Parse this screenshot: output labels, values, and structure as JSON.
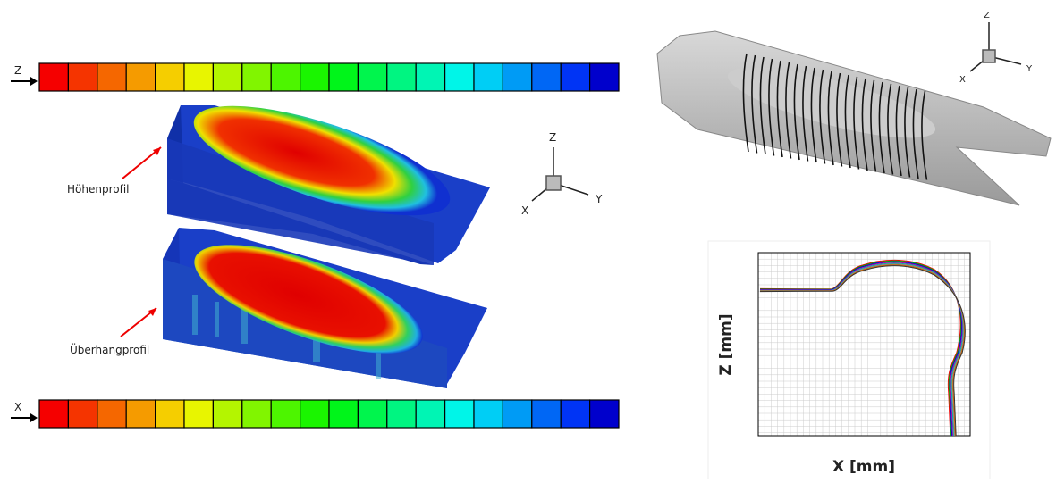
{
  "colorbars": [
    {
      "axis_label": "Z"
    },
    {
      "axis_label": "X"
    }
  ],
  "annotations": [
    "Höhenprofil",
    "Überhangprofil"
  ],
  "triads": [
    {
      "z": "Z",
      "x": "X",
      "y": "Y"
    },
    {
      "z": "Z",
      "x": "X",
      "y": "Y"
    }
  ],
  "plot": {
    "y_label": "Z [mm]",
    "x_label": "X [mm]"
  }
}
